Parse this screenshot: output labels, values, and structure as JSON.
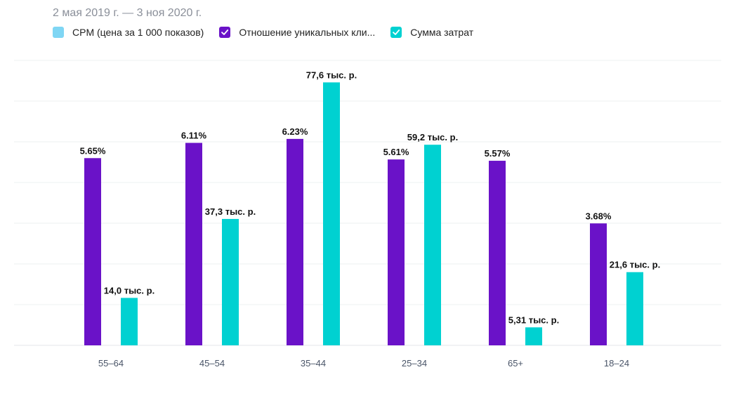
{
  "header": {
    "date_range": "2 мая 2019 г. — 3 ноя 2020 г."
  },
  "legend": [
    {
      "label": "CPM (цена за 1 000 показов)",
      "color": "#7fd6f4",
      "checked": false
    },
    {
      "label": "Отношение уникальных кли...",
      "color": "#6a12c8",
      "checked": true
    },
    {
      "label": "Сумма затрат",
      "color": "#00d1d1",
      "checked": true
    }
  ],
  "chart_data": {
    "type": "bar",
    "categories": [
      "55–64",
      "45–54",
      "35–44",
      "25–34",
      "65+",
      "18–24"
    ],
    "series": [
      {
        "name": "Отношение уникальных кли...",
        "color": "#6a12c8",
        "values": [
          5.65,
          6.11,
          6.23,
          5.61,
          5.57,
          3.68
        ],
        "labels": [
          "5.65%",
          "6.11%",
          "6.23%",
          "5.61%",
          "5.57%",
          "3.68%"
        ],
        "ylim": [
          0,
          8.6
        ]
      },
      {
        "name": "Сумма затрат",
        "color": "#00d1d1",
        "values": [
          14.0,
          37.3,
          77.6,
          59.2,
          5.31,
          21.6
        ],
        "labels": [
          "14,0 тыс. р.",
          "37,3 тыс. р.",
          "77,6 тыс. р.",
          "59,2 тыс. р.",
          "5,31 тыс. р.",
          "21,6 тыс. р."
        ],
        "ylim": [
          0,
          84.1
        ]
      }
    ],
    "grid": true,
    "legend_position": "top-left"
  }
}
